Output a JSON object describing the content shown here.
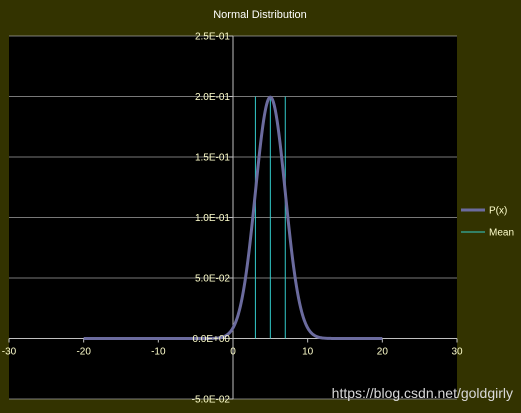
{
  "chart_data": {
    "type": "line",
    "title": "Normal Distribution",
    "xlabel": "",
    "ylabel": "",
    "xlim": [
      -30,
      30
    ],
    "ylim": [
      -0.05,
      0.25
    ],
    "x_ticks": [
      -30,
      -20,
      -10,
      0,
      10,
      20,
      30
    ],
    "x_tick_labels": [
      "-30",
      "-20",
      "-10",
      "0",
      "10",
      "20",
      "30"
    ],
    "y_ticks": [
      -0.05,
      0,
      0.05,
      0.1,
      0.15,
      0.2,
      0.25
    ],
    "y_tick_labels": [
      "-5.0E-02",
      "0.0E+00",
      "5.0E-02",
      "1.0E-01",
      "1.5E-01",
      "2.0E-01",
      "2.5E-01"
    ],
    "grid": "horizontal",
    "legend_position": "right",
    "series": [
      {
        "name": "P(x)",
        "kind": "curve",
        "color": "#6b6b9e",
        "distribution": {
          "mean": 5,
          "std": 2
        },
        "x_range": [
          -20,
          20
        ]
      },
      {
        "name": "Mean",
        "kind": "vertical-lines",
        "color": "#33cccc",
        "x": [
          3,
          5,
          7
        ],
        "y_range": [
          0,
          0.2
        ]
      }
    ]
  },
  "watermark": "https://blog.csdn.net/goldgirly",
  "colors": {
    "outer_background": "#333300",
    "plot_background": "#000000",
    "gridline": "#a0a0a0",
    "axis": "#c0c0c0"
  }
}
